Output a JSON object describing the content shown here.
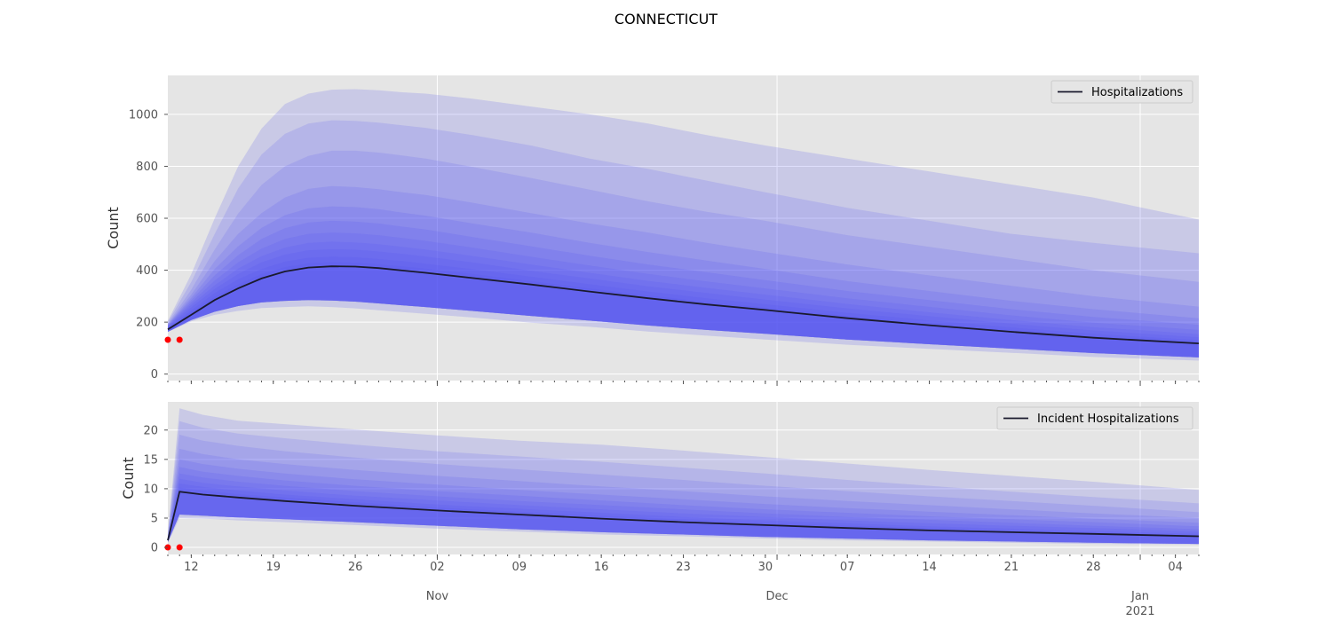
{
  "chart_data": {
    "title": "CONNECTICUT",
    "x_start": "2020-10-10",
    "x_end": "2021-01-06",
    "x_major_ticks": [
      {
        "date": "2020-11-02",
        "label": "Nov"
      },
      {
        "date": "2020-12-01",
        "label": "Dec"
      },
      {
        "date": "2021-01-01",
        "label": "Jan\n2021"
      }
    ],
    "x_minor_ticks": [
      {
        "date": "2020-10-12",
        "label": "12"
      },
      {
        "date": "2020-10-19",
        "label": "19"
      },
      {
        "date": "2020-10-26",
        "label": "26"
      },
      {
        "date": "2020-11-02",
        "label": "02"
      },
      {
        "date": "2020-11-09",
        "label": "09"
      },
      {
        "date": "2020-11-16",
        "label": "16"
      },
      {
        "date": "2020-11-23",
        "label": "23"
      },
      {
        "date": "2020-11-30",
        "label": "30"
      },
      {
        "date": "2020-12-07",
        "label": "07"
      },
      {
        "date": "2020-12-14",
        "label": "14"
      },
      {
        "date": "2020-12-21",
        "label": "21"
      },
      {
        "date": "2020-12-28",
        "label": "28"
      },
      {
        "date": "2021-01-04",
        "label": "04"
      }
    ],
    "panels": [
      {
        "type": "area",
        "ylabel": "Count",
        "ylim": [
          -25,
          1150
        ],
        "yticks": [
          0,
          200,
          400,
          600,
          800,
          1000
        ],
        "legend": "Hospitalizations",
        "legend_position": "upper-right",
        "band_color": "#5050f0",
        "median": {
          "x": [
            "2020-10-10",
            "2020-10-12",
            "2020-10-14",
            "2020-10-16",
            "2020-10-18",
            "2020-10-20",
            "2020-10-22",
            "2020-10-24",
            "2020-10-26",
            "2020-10-28",
            "2020-10-30",
            "2020-11-01",
            "2020-11-05",
            "2020-11-10",
            "2020-11-15",
            "2020-11-20",
            "2020-11-25",
            "2020-11-30",
            "2020-12-07",
            "2020-12-14",
            "2020-12-21",
            "2020-12-28",
            "2021-01-06"
          ],
          "y": [
            172,
            228,
            285,
            330,
            368,
            395,
            410,
            415,
            414,
            408,
            399,
            390,
            370,
            345,
            318,
            292,
            268,
            247,
            215,
            188,
            163,
            140,
            118
          ]
        },
        "bands": [
          {
            "upper": [
              205,
              385,
              600,
              800,
              945,
              1040,
              1080,
              1095,
              1097,
              1093,
              1085,
              1080,
              1060,
              1030,
              1000,
              965,
              920,
              880,
              830,
              780,
              730,
              680,
              595
            ],
            "lower": [
              162,
              203,
              228,
              243,
              254,
              258,
              261,
              258,
              253,
              246,
              239,
              232,
              218,
              198,
              182,
              164,
              148,
              133,
              113,
              97,
              82,
              66,
              52
            ]
          },
          {
            "upper": [
              200,
              355,
              540,
              715,
              845,
              925,
              965,
              977,
              975,
              968,
              958,
              948,
              920,
              880,
              830,
              790,
              745,
              700,
              640,
              590,
              540,
              505,
              465
            ],
            "lower": [
              163,
              208,
              240,
              262,
              276,
              282,
              285,
              283,
              279,
              272,
              265,
              258,
              243,
              224,
              206,
              187,
              170,
              155,
              133,
              115,
              98,
              81,
              64
            ]
          },
          {
            "upper": [
              195,
              325,
              480,
              618,
              728,
              800,
              840,
              860,
              860,
              853,
              842,
              830,
              798,
              755,
              710,
              665,
              625,
              590,
              535,
              490,
              445,
              400,
              355
            ]
          },
          {
            "upper": [
              192,
              306,
              435,
              540,
              620,
              680,
              713,
              724,
              720,
              712,
              700,
              690,
              660,
              620,
              580,
              545,
              505,
              470,
              422,
              380,
              340,
              300,
              260
            ]
          },
          {
            "upper": [
              190,
              294,
              405,
              492,
              563,
              612,
              638,
              646,
              643,
              635,
              622,
              610,
              580,
              545,
              505,
              470,
              437,
              405,
              358,
              320,
              282,
              250,
              215
            ]
          },
          {
            "upper": [
              188,
              285,
              380,
              458,
              520,
              562,
              584,
              590,
              587,
              580,
              568,
              557,
              528,
              492,
              456,
              422,
              392,
              362,
              320,
              285,
              250,
              220,
              190
            ]
          },
          {
            "upper": [
              186,
              276,
              360,
              430,
              483,
              520,
              540,
              545,
              542,
              535,
              524,
              513,
              487,
              452,
              418,
              386,
              357,
              330,
              292,
              259,
              226,
              198,
              170
            ]
          },
          {
            "upper": [
              184,
              267,
              342,
              406,
              454,
              487,
              505,
              510,
              507,
              500,
              490,
              480,
              455,
              422,
              390,
              359,
              332,
              306,
              270,
              238,
              208,
              181,
              154
            ]
          },
          {
            "upper": [
              182,
              257,
              328,
              386,
              430,
              460,
              477,
              481,
              479,
              472,
              463,
              453,
              430,
              398,
              368,
              338,
              312,
              287,
              253,
              223,
              194,
              168,
              142
            ]
          },
          {
            "upper": [
              179,
              246,
              312,
              365,
              405,
              433,
              448,
              452,
              450,
              443,
              435,
              425,
              404,
              375,
              346,
              318,
              292,
              269,
              236,
              207,
              180,
              155,
              131
            ]
          },
          {
            "upper": [
              176,
              237,
              298,
              346,
              385,
              412,
              427,
              431,
              429,
              423,
              415,
              406,
              386,
              358,
              330,
              303,
              278,
              256,
              224,
              196,
              170,
              146,
              124
            ]
          }
        ],
        "observed": {
          "x": [
            "2020-10-10",
            "2020-10-11"
          ],
          "y": [
            132,
            132
          ],
          "color": "#ff0000"
        }
      },
      {
        "type": "area",
        "ylabel": "Count",
        "ylim": [
          -1.2,
          24.8
        ],
        "yticks": [
          0,
          5,
          10,
          15,
          20
        ],
        "legend": "Incident Hospitalizations",
        "legend_position": "upper-right",
        "band_color": "#5050f0",
        "median": {
          "x": [
            "2020-10-10",
            "2020-10-11",
            "2020-10-13",
            "2020-10-16",
            "2020-10-20",
            "2020-10-26",
            "2020-11-02",
            "2020-11-09",
            "2020-11-16",
            "2020-11-23",
            "2020-11-30",
            "2020-12-07",
            "2020-12-14",
            "2020-12-21",
            "2020-12-28",
            "2021-01-06"
          ],
          "y": [
            1.2,
            9.5,
            9.0,
            8.5,
            7.9,
            7.1,
            6.3,
            5.6,
            4.9,
            4.3,
            3.8,
            3.3,
            2.9,
            2.6,
            2.3,
            1.9
          ]
        },
        "bands": [
          {
            "upper": [
              2.5,
              23.7,
              22.6,
              21.6,
              21.0,
              20.1,
              19.1,
              18.2,
              17.5,
              16.5,
              15.4,
              14.3,
              13.2,
              12.2,
              11.2,
              9.8
            ],
            "lower": [
              0.8,
              5.0,
              4.9,
              4.6,
              4.3,
              3.8,
              3.2,
              2.7,
              2.2,
              1.9,
              1.5,
              1.2,
              1.0,
              0.8,
              0.6,
              0.5
            ]
          },
          {
            "upper": [
              2.2,
              21.5,
              20.4,
              19.4,
              18.6,
              17.5,
              16.4,
              15.5,
              14.6,
              13.6,
              12.6,
              11.5,
              10.5,
              9.5,
              8.6,
              7.5
            ],
            "lower": [
              0.9,
              5.6,
              5.4,
              5.1,
              4.8,
              4.3,
              3.7,
              3.1,
              2.6,
              2.2,
              1.8,
              1.5,
              1.2,
              1.0,
              0.8,
              0.6
            ]
          },
          {
            "upper": [
              2.0,
              19.2,
              18.2,
              17.3,
              16.4,
              15.3,
              14.2,
              13.3,
              12.4,
              11.5,
              10.5,
              9.6,
              8.7,
              7.9,
              7.1,
              6.0
            ]
          },
          {
            "upper": [
              1.8,
              16.8,
              15.9,
              15.0,
              14.2,
              13.2,
              12.2,
              11.3,
              10.4,
              9.6,
              8.7,
              7.9,
              7.2,
              6.5,
              5.8,
              5.0
            ]
          },
          {
            "upper": [
              1.7,
              15.0,
              14.2,
              13.4,
              12.6,
              11.6,
              10.7,
              9.8,
              9.0,
              8.2,
              7.4,
              6.7,
              6.1,
              5.5,
              4.9,
              4.2
            ]
          },
          {
            "upper": [
              1.6,
              13.7,
              12.9,
              12.2,
              11.4,
              10.5,
              9.6,
              8.8,
              8.0,
              7.2,
              6.5,
              5.9,
              5.3,
              4.8,
              4.3,
              3.6
            ]
          },
          {
            "upper": [
              1.5,
              12.6,
              11.9,
              11.2,
              10.5,
              9.6,
              8.7,
              7.9,
              7.2,
              6.5,
              5.8,
              5.2,
              4.7,
              4.2,
              3.7,
              3.1
            ]
          },
          {
            "upper": [
              1.4,
              11.7,
              11.0,
              10.4,
              9.7,
              8.8,
              8.0,
              7.2,
              6.5,
              5.8,
              5.2,
              4.6,
              4.1,
              3.7,
              3.3,
              2.7
            ]
          },
          {
            "upper": [
              1.3,
              10.9,
              10.3,
              9.7,
              9.0,
              8.2,
              7.3,
              6.6,
              5.9,
              5.2,
              4.6,
              4.1,
              3.6,
              3.2,
              2.8,
              2.3
            ]
          },
          {
            "upper": [
              1.25,
              10.2,
              9.7,
              9.1,
              8.5,
              7.7,
              6.8,
              6.1,
              5.4,
              4.8,
              4.2,
              3.7,
              3.3,
              2.9,
              2.6,
              2.1
            ]
          }
        ],
        "observed": {
          "x": [
            "2020-10-10",
            "2020-10-11"
          ],
          "y": [
            0,
            0
          ],
          "color": "#ff0000"
        }
      }
    ]
  }
}
